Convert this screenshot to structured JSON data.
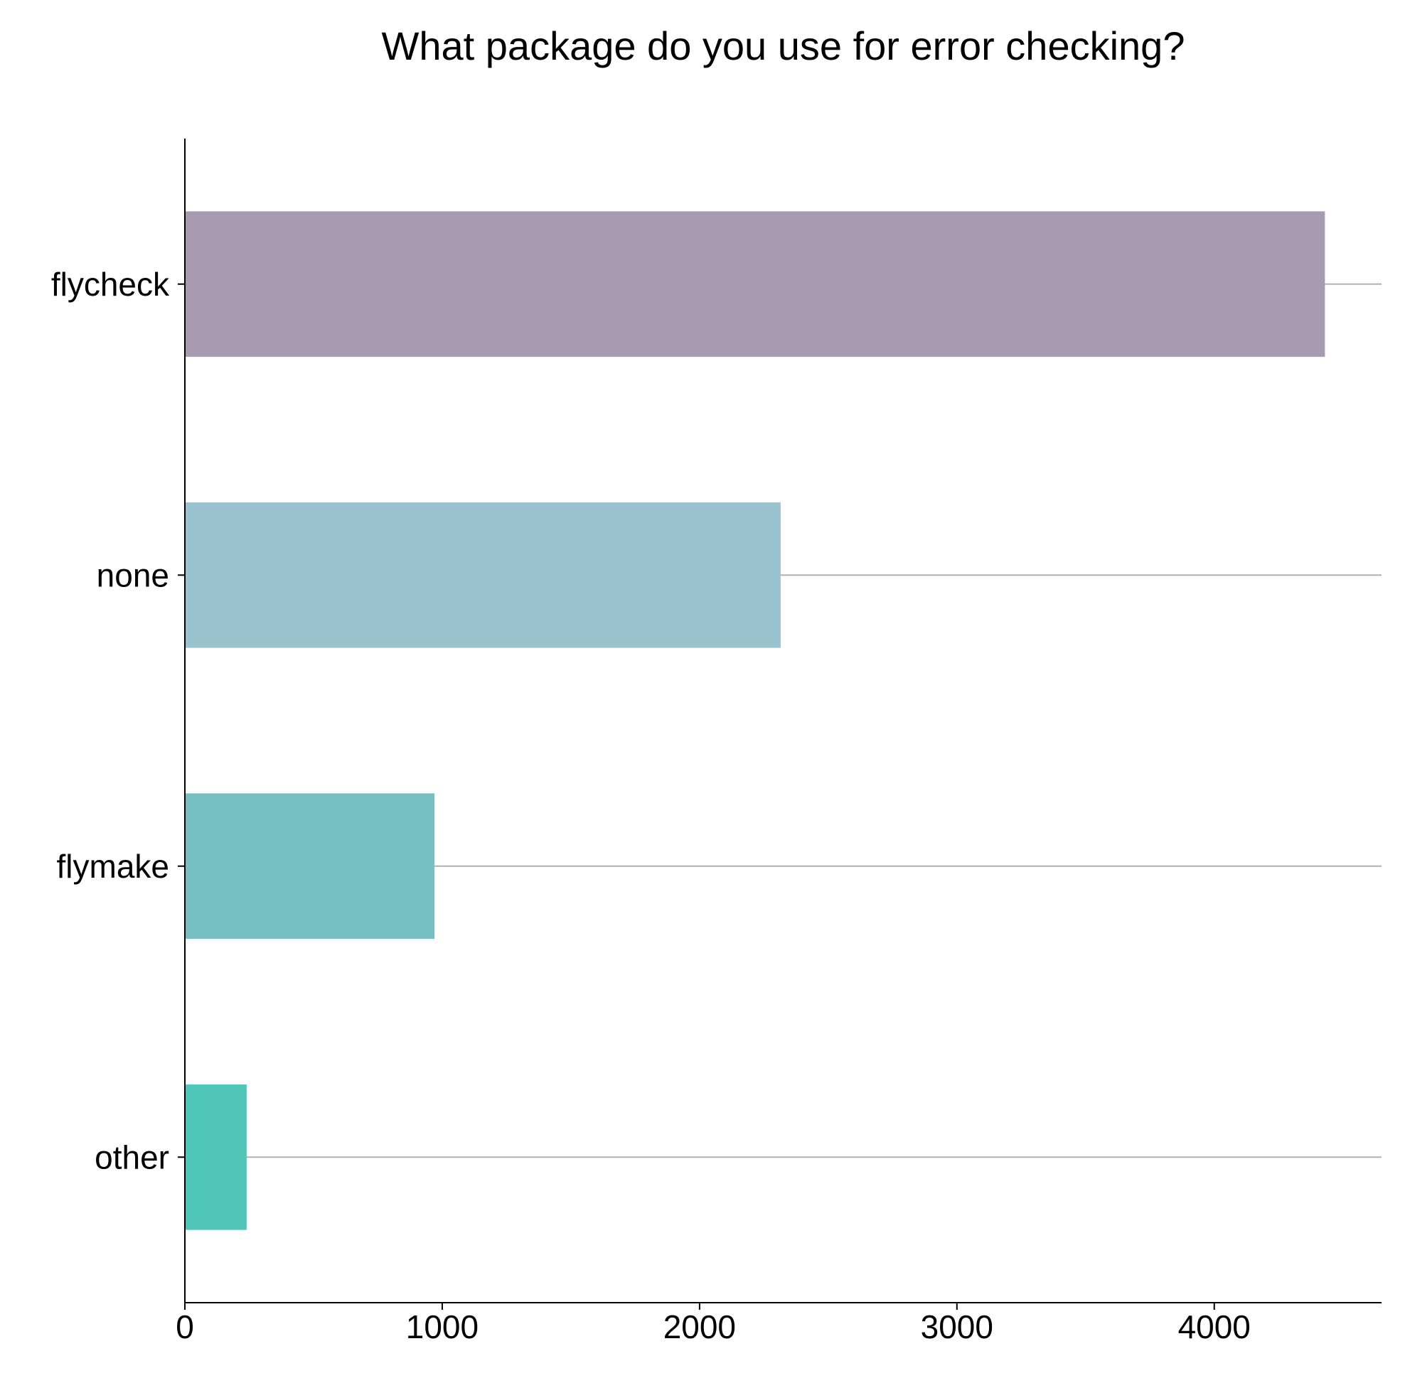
{
  "chart_data": {
    "type": "bar",
    "orientation": "horizontal",
    "title": "What package do you use for error checking?",
    "xlabel": "",
    "ylabel": "",
    "categories": [
      "flycheck",
      "none",
      "flymake",
      "other"
    ],
    "values": [
      4430,
      2315,
      970,
      240
    ],
    "colors": [
      "#a89ab1",
      "#9ac3cf",
      "#76c0c4",
      "#4fc6b8"
    ],
    "xlim": [
      0,
      4650
    ],
    "xticks": [
      0,
      1000,
      2000,
      3000,
      4000
    ],
    "xtick_labels": [
      "0",
      "1000",
      "2000",
      "3000",
      "4000"
    ],
    "grid": "horizontal lines through bar centers",
    "legend": "none"
  }
}
